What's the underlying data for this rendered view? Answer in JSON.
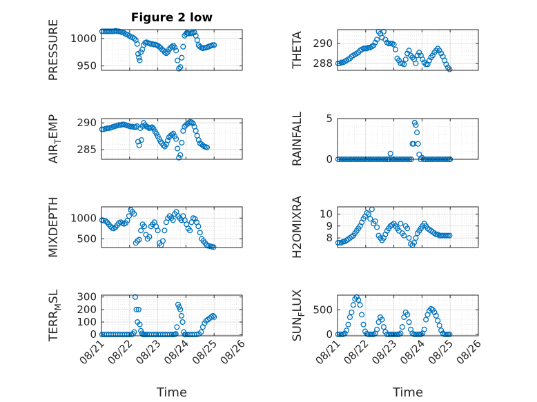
{
  "figure": {
    "title": "Figure 2 low"
  },
  "chart_data": [
    {
      "type": "scatter",
      "ylabel": "PRESSURE",
      "title": "Figure 2 low",
      "xlabel": "",
      "xlim": [
        0,
        5
      ],
      "ylim": [
        942,
        1016
      ],
      "yticks": [
        950,
        1000
      ],
      "xtick_labels": [
        "08/21",
        "08/22",
        "08/23",
        "08/24",
        "08/25",
        "08/26"
      ],
      "show_xticklabels": false,
      "grid": true,
      "x": [
        0.02,
        0.08,
        0.14,
        0.2,
        0.26,
        0.32,
        0.38,
        0.44,
        0.5,
        0.56,
        0.62,
        0.68,
        0.74,
        0.8,
        0.86,
        0.92,
        0.98,
        1.04,
        1.1,
        1.16,
        1.22,
        1.27,
        1.3,
        1.33,
        1.36,
        1.4,
        1.45,
        1.5,
        1.55,
        1.6,
        1.65,
        1.7,
        1.75,
        1.8,
        1.85,
        1.9,
        1.95,
        2.0,
        2.05,
        2.1,
        2.15,
        2.2,
        2.25,
        2.3,
        2.35,
        2.4,
        2.45,
        2.5,
        2.55,
        2.6,
        2.65,
        2.7,
        2.75,
        2.8,
        2.85,
        2.9,
        2.95,
        3.0,
        3.03,
        3.06,
        3.1,
        3.15,
        3.2,
        3.25,
        3.3,
        3.35,
        3.4,
        3.45,
        3.5,
        3.55,
        3.6,
        3.65,
        3.7,
        3.75,
        3.8,
        3.85,
        3.9,
        3.95,
        4.0
      ],
      "y": [
        1013,
        1013,
        1013,
        1013,
        1013,
        1013,
        1013,
        1013,
        1014,
        1013,
        1013,
        1012,
        1011,
        1010,
        1008,
        1007,
        1005,
        1003,
        1002,
        1000,
        997,
        990,
        972,
        965,
        960,
        975,
        980,
        988,
        992,
        993,
        992,
        991,
        990,
        990,
        989,
        989,
        988,
        987,
        985,
        983,
        980,
        978,
        975,
        973,
        975,
        980,
        983,
        985,
        987,
        984,
        978,
        960,
        945,
        948,
        965,
        985,
        1005,
        1008,
        1010,
        1010,
        1009,
        1009,
        1010,
        1010,
        1011,
        1005,
        997,
        988,
        985,
        983,
        982,
        983,
        983,
        984,
        985,
        986,
        987,
        988,
        988
      ]
    },
    {
      "type": "scatter",
      "ylabel": "THETA",
      "xlabel": "",
      "xlim": [
        0,
        5
      ],
      "ylim": [
        287.3,
        291.4
      ],
      "yticks": [
        288,
        290
      ],
      "show_xticklabels": false,
      "grid": true,
      "x": [
        0.02,
        0.08,
        0.14,
        0.2,
        0.26,
        0.32,
        0.38,
        0.44,
        0.5,
        0.56,
        0.62,
        0.68,
        0.74,
        0.8,
        0.86,
        0.92,
        0.98,
        1.04,
        1.1,
        1.16,
        1.22,
        1.28,
        1.34,
        1.4,
        1.46,
        1.52,
        1.58,
        1.64,
        1.7,
        1.76,
        1.82,
        1.88,
        1.94,
        2.0,
        2.06,
        2.12,
        2.18,
        2.24,
        2.3,
        2.36,
        2.42,
        2.48,
        2.54,
        2.6,
        2.66,
        2.72,
        2.78,
        2.84,
        2.9,
        2.96,
        3.02,
        3.08,
        3.14,
        3.2,
        3.26,
        3.32,
        3.38,
        3.44,
        3.5,
        3.56,
        3.62,
        3.68,
        3.74,
        3.8,
        3.86,
        3.92,
        3.98
      ],
      "y": [
        288.0,
        288.0,
        288.1,
        288.1,
        288.2,
        288.3,
        288.4,
        288.5,
        288.7,
        288.8,
        288.9,
        289.0,
        289.1,
        289.3,
        289.4,
        289.5,
        289.5,
        289.5,
        289.6,
        289.6,
        289.7,
        289.8,
        290.1,
        290.4,
        291.2,
        291.0,
        290.6,
        291.2,
        290.4,
        290.1,
        290.0,
        290.0,
        290.0,
        289.9,
        289.4,
        288.5,
        288.3,
        288.0,
        288.0,
        287.9,
        288.4,
        289.0,
        289.3,
        288.8,
        288.6,
        288.4,
        288.0,
        288.8,
        289.1,
        288.8,
        288.4,
        288.1,
        287.9,
        287.9,
        288.3,
        288.6,
        288.8,
        289.1,
        289.3,
        289.5,
        289.3,
        289.0,
        288.7,
        288.3,
        287.9,
        287.6,
        287.4
      ]
    },
    {
      "type": "scatter",
      "ylabel": "AIR_TEMP",
      "xlabel": "",
      "xlim": [
        0,
        5
      ],
      "ylim": [
        283.2,
        290.8
      ],
      "yticks": [
        285,
        290
      ],
      "show_xticklabels": false,
      "grid": true,
      "x": [
        0.02,
        0.08,
        0.14,
        0.2,
        0.26,
        0.32,
        0.38,
        0.44,
        0.5,
        0.56,
        0.62,
        0.68,
        0.74,
        0.8,
        0.86,
        0.92,
        0.98,
        1.04,
        1.1,
        1.16,
        1.22,
        1.26,
        1.3,
        1.34,
        1.38,
        1.42,
        1.46,
        1.5,
        1.55,
        1.6,
        1.65,
        1.7,
        1.75,
        1.8,
        1.85,
        1.9,
        1.95,
        2.0,
        2.05,
        2.1,
        2.15,
        2.2,
        2.25,
        2.3,
        2.35,
        2.4,
        2.45,
        2.5,
        2.55,
        2.6,
        2.65,
        2.7,
        2.75,
        2.8,
        2.85,
        2.9,
        2.95,
        3.0,
        3.05,
        3.1,
        3.15,
        3.2,
        3.25,
        3.3,
        3.35,
        3.4,
        3.45,
        3.5,
        3.55,
        3.6,
        3.65,
        3.7,
        3.75
      ],
      "y": [
        288.8,
        288.8,
        288.9,
        289.0,
        289.0,
        289.1,
        289.2,
        289.3,
        289.4,
        289.5,
        289.6,
        289.6,
        289.7,
        289.7,
        289.6,
        289.5,
        289.4,
        289.3,
        289.3,
        289.2,
        289.2,
        289.4,
        286.5,
        285.8,
        289.0,
        286.8,
        289.4,
        290.0,
        289.6,
        289.3,
        289.2,
        289.0,
        289.1,
        289.2,
        288.9,
        288.4,
        288.0,
        287.5,
        287.0,
        286.5,
        286.2,
        285.8,
        285.6,
        286.0,
        286.7,
        287.3,
        287.6,
        287.8,
        288.0,
        287.5,
        287.0,
        285.2,
        283.5,
        284.0,
        286.3,
        288.5,
        289.3,
        289.6,
        289.8,
        290.0,
        290.2,
        290.1,
        289.9,
        289.3,
        288.5,
        287.6,
        286.8,
        286.2,
        286.0,
        285.8,
        285.6,
        285.5,
        285.4
      ]
    },
    {
      "type": "scatter",
      "ylabel": "RAINFALL",
      "xlabel": "",
      "xlim": [
        0,
        5
      ],
      "ylim": [
        0,
        5
      ],
      "yticks": [
        0,
        5
      ],
      "show_xticklabels": false,
      "grid": true,
      "x": [
        0.02,
        0.08,
        0.14,
        0.2,
        0.26,
        0.32,
        0.38,
        0.44,
        0.5,
        0.56,
        0.62,
        0.68,
        0.74,
        0.8,
        0.86,
        0.92,
        0.98,
        1.04,
        1.1,
        1.16,
        1.22,
        1.28,
        1.34,
        1.4,
        1.46,
        1.52,
        1.58,
        1.64,
        1.7,
        1.76,
        1.8,
        1.84,
        1.88,
        1.92,
        1.96,
        2.02,
        2.08,
        2.14,
        2.2,
        2.26,
        2.32,
        2.38,
        2.44,
        2.5,
        2.56,
        2.62,
        2.66,
        2.7,
        2.74,
        2.78,
        2.82,
        2.86,
        2.9,
        2.95,
        3.0,
        3.06,
        3.12,
        3.18,
        3.24,
        3.3,
        3.36,
        3.42,
        3.48,
        3.54,
        3.6,
        3.66,
        3.72,
        3.78,
        3.84,
        3.9,
        3.96,
        4.0
      ],
      "y": [
        0,
        0,
        0,
        0,
        0,
        0,
        0,
        0,
        0,
        0,
        0,
        0,
        0,
        0,
        0,
        0,
        0,
        0,
        0,
        0,
        0,
        0,
        0,
        0,
        0,
        0,
        0,
        0,
        0,
        0,
        0,
        0,
        0.7,
        0,
        0,
        0,
        0,
        0,
        0,
        0,
        0,
        0,
        0,
        0,
        0,
        0,
        1.9,
        1.9,
        4.5,
        4.2,
        3.3,
        1.9,
        0.6,
        0,
        0.2,
        0,
        0,
        0,
        0,
        0,
        0,
        0,
        0,
        0,
        0,
        0,
        0,
        0,
        0,
        0,
        0,
        0
      ]
    },
    {
      "type": "scatter",
      "ylabel": "MIXDEPTH",
      "xlabel": "",
      "xlim": [
        0,
        5
      ],
      "ylim": [
        290,
        1270
      ],
      "yticks": [
        500,
        1000
      ],
      "show_xticklabels": false,
      "grid": true,
      "x": [
        0.02,
        0.08,
        0.14,
        0.2,
        0.26,
        0.32,
        0.38,
        0.44,
        0.5,
        0.56,
        0.62,
        0.68,
        0.74,
        0.8,
        0.86,
        0.92,
        0.98,
        1.04,
        1.1,
        1.16,
        1.22,
        1.28,
        1.34,
        1.4,
        1.46,
        1.52,
        1.58,
        1.64,
        1.7,
        1.76,
        1.82,
        1.88,
        1.94,
        2.0,
        2.06,
        2.12,
        2.18,
        2.24,
        2.3,
        2.36,
        2.42,
        2.48,
        2.54,
        2.6,
        2.66,
        2.72,
        2.78,
        2.84,
        2.9,
        2.96,
        3.02,
        3.08,
        3.14,
        3.2,
        3.26,
        3.32,
        3.38,
        3.44,
        3.5,
        3.56,
        3.62,
        3.68,
        3.74,
        3.8,
        3.86,
        3.92,
        3.98
      ],
      "y": [
        950,
        940,
        930,
        900,
        850,
        800,
        760,
        750,
        780,
        830,
        880,
        900,
        880,
        860,
        880,
        940,
        1050,
        1200,
        1150,
        1100,
        400,
        450,
        480,
        700,
        850,
        800,
        600,
        500,
        550,
        800,
        850,
        900,
        800,
        700,
        400,
        350,
        450,
        700,
        900,
        1000,
        1050,
        1000,
        950,
        1100,
        1150,
        1050,
        1000,
        950,
        1050,
        950,
        850,
        750,
        700,
        900,
        1000,
        980,
        900,
        800,
        650,
        500,
        450,
        400,
        350,
        330,
        320,
        310,
        300
      ]
    },
    {
      "type": "scatter",
      "ylabel": "H2OMIXRA",
      "xlabel": "",
      "xlim": [
        0,
        5
      ],
      "ylim": [
        7.2,
        10.6
      ],
      "yticks": [
        8,
        9,
        10
      ],
      "show_xticklabels": false,
      "grid": true,
      "x": [
        0.02,
        0.08,
        0.14,
        0.2,
        0.26,
        0.32,
        0.38,
        0.44,
        0.5,
        0.56,
        0.62,
        0.68,
        0.74,
        0.8,
        0.86,
        0.92,
        0.98,
        1.04,
        1.1,
        1.16,
        1.22,
        1.28,
        1.34,
        1.4,
        1.46,
        1.52,
        1.58,
        1.64,
        1.7,
        1.76,
        1.82,
        1.88,
        1.94,
        2.0,
        2.06,
        2.12,
        2.18,
        2.24,
        2.3,
        2.36,
        2.42,
        2.48,
        2.54,
        2.6,
        2.66,
        2.72,
        2.78,
        2.84,
        2.9,
        2.96,
        3.02,
        3.08,
        3.14,
        3.2,
        3.26,
        3.32,
        3.38,
        3.44,
        3.5,
        3.56,
        3.62,
        3.68,
        3.74,
        3.8,
        3.86,
        3.92,
        3.98
      ],
      "y": [
        7.6,
        7.6,
        7.6,
        7.7,
        7.7,
        7.8,
        7.9,
        8.0,
        8.1,
        8.2,
        8.4,
        8.6,
        8.8,
        9.0,
        9.3,
        9.6,
        9.8,
        10.1,
        10.0,
        9.6,
        10.4,
        9.2,
        9.4,
        8.9,
        8.2,
        8.0,
        7.8,
        8.0,
        8.3,
        8.6,
        8.8,
        9.0,
        9.1,
        9.2,
        9.0,
        8.8,
        8.6,
        9.2,
        8.4,
        8.2,
        9.0,
        8.8,
        8.0,
        7.5,
        7.4,
        7.6,
        8.0,
        8.4,
        8.6,
        8.8,
        9.0,
        9.2,
        9.0,
        8.8,
        8.7,
        8.6,
        8.5,
        8.4,
        8.3,
        8.3,
        8.2,
        8.2,
        8.2,
        8.2,
        8.2,
        8.2,
        8.2
      ]
    },
    {
      "type": "scatter",
      "ylabel": "TERR_MSL",
      "xlabel": "Time",
      "xlim": [
        0,
        5
      ],
      "ylim": [
        -10,
        315
      ],
      "yticks": [
        0,
        100,
        200,
        300
      ],
      "xtick_labels": [
        "08/21",
        "08/22",
        "08/23",
        "08/24",
        "08/25",
        "08/26"
      ],
      "show_xticklabels": true,
      "grid": true,
      "x": [
        0.02,
        0.1,
        0.18,
        0.26,
        0.34,
        0.42,
        0.5,
        0.58,
        0.66,
        0.74,
        0.82,
        0.9,
        0.98,
        1.06,
        1.12,
        1.16,
        1.2,
        1.24,
        1.28,
        1.32,
        1.36,
        1.4,
        1.44,
        1.48,
        1.52,
        1.56,
        1.62,
        1.7,
        1.78,
        1.86,
        1.94,
        2.02,
        2.1,
        2.18,
        2.26,
        2.34,
        2.42,
        2.5,
        2.56,
        2.6,
        2.64,
        2.68,
        2.72,
        2.76,
        2.8,
        2.84,
        2.88,
        2.92,
        2.96,
        3.0,
        3.06,
        3.14,
        3.22,
        3.3,
        3.38,
        3.46,
        3.54,
        3.6,
        3.66,
        3.72,
        3.78,
        3.84,
        3.9,
        3.96,
        4.0
      ],
      "y": [
        0,
        0,
        0,
        0,
        0,
        0,
        0,
        0,
        0,
        0,
        0,
        0,
        0,
        0,
        5,
        20,
        300,
        200,
        100,
        200,
        80,
        30,
        10,
        0,
        0,
        0,
        0,
        0,
        0,
        0,
        0,
        0,
        0,
        0,
        0,
        0,
        0,
        0,
        0,
        2,
        5,
        60,
        240,
        220,
        200,
        150,
        100,
        20,
        0,
        0,
        0,
        0,
        0,
        0,
        0,
        5,
        20,
        60,
        90,
        110,
        120,
        130,
        140,
        150,
        140
      ]
    },
    {
      "type": "scatter",
      "ylabel": "SUN_FLUX",
      "xlabel": "Time",
      "xlim": [
        0,
        5
      ],
      "ylim": [
        -30,
        800
      ],
      "yticks": [
        0,
        500
      ],
      "xtick_labels": [
        "08/21",
        "08/22",
        "08/23",
        "08/24",
        "08/25",
        "08/26"
      ],
      "show_xticklabels": true,
      "grid": true,
      "x": [
        0.02,
        0.08,
        0.14,
        0.2,
        0.26,
        0.32,
        0.38,
        0.44,
        0.5,
        0.56,
        0.62,
        0.68,
        0.74,
        0.8,
        0.86,
        0.92,
        0.98,
        1.04,
        1.1,
        1.16,
        1.22,
        1.28,
        1.34,
        1.4,
        1.46,
        1.52,
        1.58,
        1.64,
        1.7,
        1.76,
        1.82,
        1.88,
        1.94,
        2.0,
        2.06,
        2.12,
        2.18,
        2.24,
        2.3,
        2.36,
        2.42,
        2.48,
        2.54,
        2.6,
        2.66,
        2.72,
        2.78,
        2.84,
        2.9,
        2.96,
        3.02,
        3.08,
        3.14,
        3.2,
        3.26,
        3.32,
        3.38,
        3.44,
        3.5,
        3.56,
        3.62,
        3.68,
        3.74,
        3.8,
        3.86,
        3.92,
        3.98
      ],
      "y": [
        0,
        0,
        0,
        0,
        20,
        80,
        200,
        350,
        450,
        600,
        720,
        760,
        700,
        600,
        400,
        200,
        60,
        10,
        0,
        0,
        0,
        0,
        20,
        100,
        250,
        350,
        300,
        150,
        50,
        0,
        0,
        0,
        0,
        0,
        0,
        0,
        0,
        20,
        150,
        350,
        450,
        400,
        250,
        100,
        20,
        0,
        0,
        0,
        0,
        0,
        20,
        100,
        300,
        400,
        480,
        520,
        500,
        450,
        380,
        280,
        180,
        80,
        20,
        0,
        0,
        0,
        0
      ]
    }
  ]
}
